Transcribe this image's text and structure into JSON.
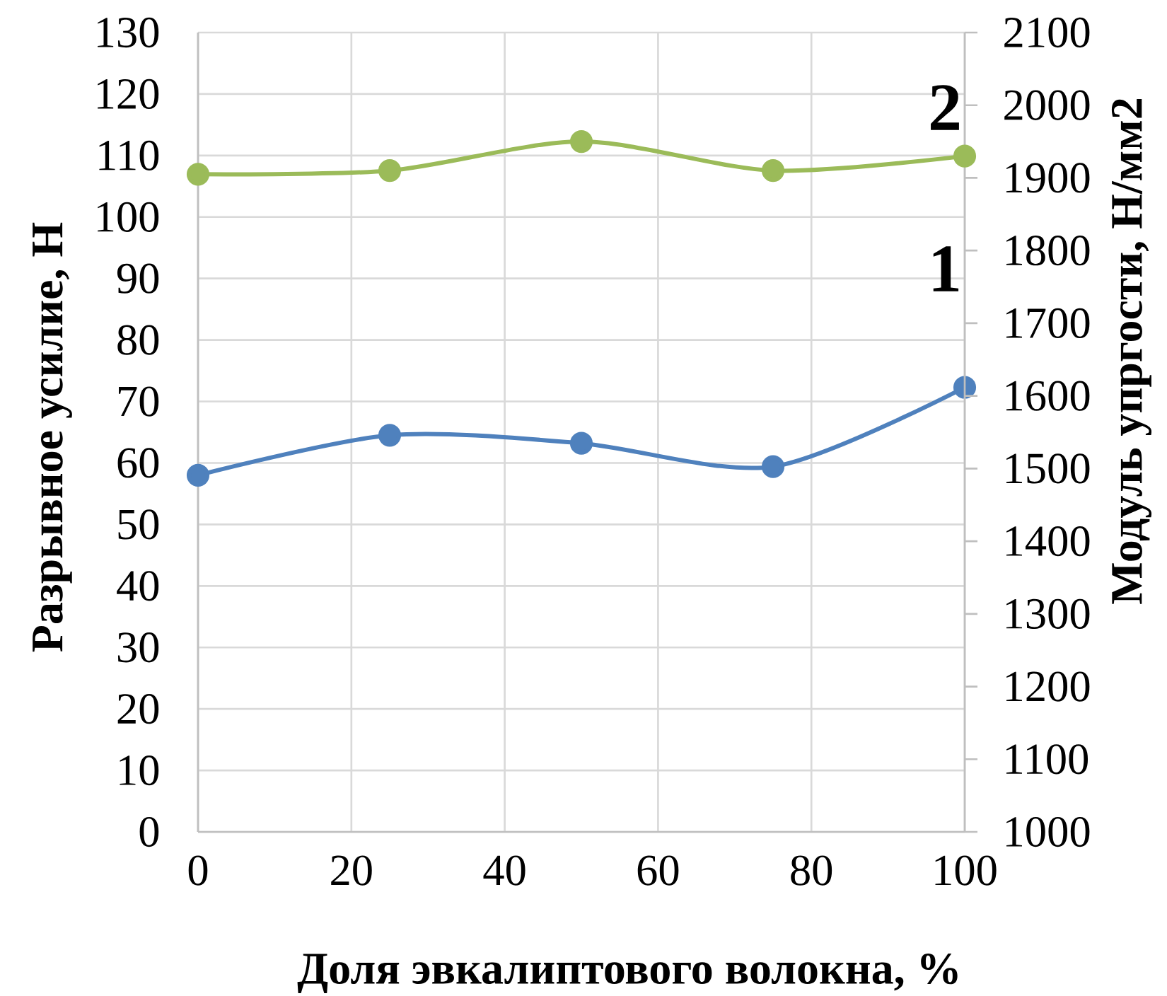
{
  "chart_data": {
    "type": "line",
    "xlabel": "Доля эвкалиптового волокна, %",
    "ylabel": "Разрывное усилие, Н",
    "y2label": "Модуль упргости, Н/мм2",
    "x": [
      0,
      25,
      50,
      75,
      100
    ],
    "xlim": [
      0,
      100
    ],
    "xticks": [
      0,
      20,
      40,
      60,
      80,
      100
    ],
    "ylim": [
      0,
      130
    ],
    "yticks": [
      0,
      10,
      20,
      30,
      40,
      50,
      60,
      70,
      80,
      90,
      100,
      110,
      120,
      130
    ],
    "y2lim": [
      1000,
      2100
    ],
    "y2ticks": [
      1000,
      1100,
      1200,
      1300,
      1400,
      1500,
      1600,
      1700,
      1800,
      1900,
      2000,
      2100
    ],
    "series": [
      {
        "color": "#4f81bd",
        "values": [
          58,
          64.5,
          63.2,
          59.4,
          72.3
        ]
      },
      {
        "color": "#9bbb59",
        "axis": "y2",
        "values": [
          1905,
          1910,
          1950,
          1910,
          1930
        ]
      }
    ],
    "annotations": [
      "2",
      "1"
    ],
    "grid": true,
    "marker": "circle",
    "line_style": "solid"
  }
}
